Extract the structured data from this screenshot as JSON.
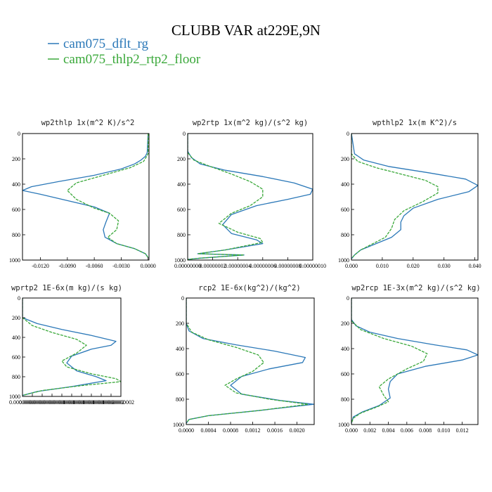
{
  "title": "CLUBB VAR at229E,9N",
  "colors": {
    "blue": "#2b78b8",
    "green": "#3aa83a"
  },
  "legend": [
    {
      "label": "cam075_dflt_rg",
      "color": "#2b78b8",
      "dash": "solid"
    },
    {
      "label": "cam075_thlp2_rtp2_floor",
      "color": "#3aa83a",
      "dash": "solid"
    }
  ],
  "chart_data": [
    {
      "type": "line",
      "title": "wp2thlp  1x(m^2 K)/s^2",
      "xlim": [
        -0.014,
        0.0001
      ],
      "ylim": [
        1000,
        0
      ],
      "xticks": [
        -0.012,
        -0.009,
        -0.006,
        -0.003,
        0.0
      ],
      "xtick_labels": [
        "-0.0120",
        "-0.0090",
        "-0.0060",
        "-0.0030",
        "0.0000"
      ],
      "yticks": [
        0,
        200,
        400,
        600,
        800,
        1000
      ],
      "series": [
        {
          "color": "blue",
          "dash": "solid",
          "points": [
            [
              0,
              0
            ],
            [
              -0.0001,
              150
            ],
            [
              -0.0003,
              180
            ],
            [
              -0.0008,
              210
            ],
            [
              -0.0015,
              240
            ],
            [
              -0.003,
              280
            ],
            [
              -0.006,
              330
            ],
            [
              -0.01,
              380
            ],
            [
              -0.013,
              420
            ],
            [
              -0.014,
              450
            ],
            [
              -0.012,
              480
            ],
            [
              -0.009,
              530
            ],
            [
              -0.006,
              580
            ],
            [
              -0.0043,
              630
            ],
            [
              -0.0047,
              700
            ],
            [
              -0.005,
              760
            ],
            [
              -0.0048,
              820
            ],
            [
              -0.0035,
              870
            ],
            [
              -0.0015,
              910
            ],
            [
              -0.0003,
              950
            ],
            [
              0,
              980
            ]
          ]
        },
        {
          "color": "green",
          "dash": "dash",
          "points": [
            [
              0,
              0
            ],
            [
              0,
              160
            ],
            [
              -0.0005,
              220
            ],
            [
              -0.002,
              270
            ],
            [
              -0.005,
              330
            ],
            [
              -0.008,
              390
            ],
            [
              -0.009,
              450
            ],
            [
              -0.008,
              520
            ],
            [
              -0.006,
              590
            ],
            [
              -0.0043,
              630
            ],
            [
              -0.0033,
              690
            ],
            [
              -0.0035,
              760
            ],
            [
              -0.0045,
              820
            ],
            [
              -0.0035,
              870
            ],
            [
              -0.0015,
              910
            ],
            [
              -0.0003,
              950
            ],
            [
              0,
              980
            ]
          ]
        }
      ]
    },
    {
      "type": "line",
      "title": "wp2rtp  1x(m^2 kg)/(s^2 kg)",
      "xlim": [
        0,
        1e-07
      ],
      "ylim": [
        1000,
        0
      ],
      "xticks": [
        0,
        2e-08,
        4e-08,
        6e-08,
        8e-08,
        1e-07
      ],
      "xtick_labels": [
        "0.00000000",
        "0.00000002",
        "0.00000004",
        "0.00000006",
        "0.00000008",
        "0.00000010"
      ],
      "yticks": [
        0,
        200,
        400,
        600,
        800,
        1000
      ],
      "series": [
        {
          "color": "blue",
          "dash": "solid",
          "points": [
            [
              0,
              0
            ],
            [
              0,
              140
            ],
            [
              3e-09,
              190
            ],
            [
              1e-08,
              240
            ],
            [
              3e-08,
              290
            ],
            [
              6e-08,
              340
            ],
            [
              8.5e-08,
              390
            ],
            [
              1e-07,
              440
            ],
            [
              9.8e-08,
              480
            ],
            [
              8e-08,
              520
            ],
            [
              5.5e-08,
              570
            ],
            [
              3.5e-08,
              640
            ],
            [
              2.8e-08,
              720
            ],
            [
              3.5e-08,
              790
            ],
            [
              5.5e-08,
              840
            ],
            [
              6e-08,
              870
            ],
            [
              3e-08,
              920
            ],
            [
              8e-09,
              950
            ],
            [
              4.5e-08,
              960
            ],
            [
              1e-08,
              985
            ],
            [
              0,
              995
            ]
          ]
        },
        {
          "color": "green",
          "dash": "dash",
          "points": [
            [
              0,
              0
            ],
            [
              0,
              150
            ],
            [
              5e-09,
              210
            ],
            [
              1.8e-08,
              260
            ],
            [
              3.5e-08,
              320
            ],
            [
              5e-08,
              380
            ],
            [
              6e-08,
              440
            ],
            [
              6e-08,
              500
            ],
            [
              5e-08,
              570
            ],
            [
              3.5e-08,
              630
            ],
            [
              2.5e-08,
              710
            ],
            [
              4e-08,
              780
            ],
            [
              5.8e-08,
              830
            ],
            [
              6e-08,
              860
            ],
            [
              3e-08,
              920
            ],
            [
              8e-09,
              950
            ],
            [
              4.5e-08,
              960
            ],
            [
              1e-08,
              985
            ],
            [
              0,
              995
            ]
          ]
        }
      ]
    },
    {
      "type": "line",
      "title": "wpthlp2  1x(m K^2)/s",
      "xlim": [
        0,
        0.041
      ],
      "ylim": [
        1000,
        0
      ],
      "xticks": [
        0,
        0.01,
        0.02,
        0.03,
        0.04
      ],
      "xtick_labels": [
        "0.000",
        "0.010",
        "0.020",
        "0.030",
        "0.040"
      ],
      "yticks": [
        0,
        200,
        400,
        600,
        800,
        1000
      ],
      "series": [
        {
          "color": "blue",
          "dash": "solid",
          "points": [
            [
              0,
              0
            ],
            [
              0.001,
              160
            ],
            [
              0.004,
              210
            ],
            [
              0.012,
              260
            ],
            [
              0.025,
              310
            ],
            [
              0.037,
              360
            ],
            [
              0.041,
              410
            ],
            [
              0.038,
              460
            ],
            [
              0.028,
              520
            ],
            [
              0.02,
              590
            ],
            [
              0.017,
              650
            ],
            [
              0.016,
              700
            ],
            [
              0.016,
              760
            ],
            [
              0.013,
              820
            ],
            [
              0.008,
              870
            ],
            [
              0.003,
              920
            ],
            [
              0.001,
              960
            ],
            [
              0,
              990
            ]
          ]
        },
        {
          "color": "green",
          "dash": "dash",
          "points": [
            [
              0,
              0
            ],
            [
              0,
              160
            ],
            [
              0.002,
              220
            ],
            [
              0.008,
              270
            ],
            [
              0.016,
              320
            ],
            [
              0.024,
              370
            ],
            [
              0.028,
              420
            ],
            [
              0.028,
              470
            ],
            [
              0.023,
              540
            ],
            [
              0.017,
              610
            ],
            [
              0.014,
              680
            ],
            [
              0.013,
              750
            ],
            [
              0.011,
              820
            ],
            [
              0.007,
              870
            ],
            [
              0.003,
              920
            ],
            [
              0.001,
              960
            ],
            [
              0,
              990
            ]
          ]
        }
      ]
    },
    {
      "type": "line",
      "title": "wprtp2  1E-6x(m kg)/(s kg)",
      "xlim": [
        0,
        2e-08
      ],
      "ylim": [
        1000,
        0
      ],
      "xticks": [
        0,
        2e-09,
        4e-09,
        6e-09,
        8e-09,
        1e-08,
        1.2e-08,
        1.4e-08,
        1.6e-08,
        1.8e-08,
        2e-08
      ],
      "xtick_labels": [
        "0.00000000",
        "0.00000000",
        "0.00000000",
        "0.00000001",
        "0.00000001",
        "0.00000001",
        "0.00000001",
        "0.00000001",
        "0.00000002",
        "0.00000002",
        "0.00000002"
      ],
      "yticks": [
        0,
        200,
        400,
        600,
        800,
        1000
      ],
      "series": [
        {
          "color": "blue",
          "dash": "solid",
          "points": [
            [
              0,
              0
            ],
            [
              0,
              200
            ],
            [
              3e-09,
              260
            ],
            [
              8e-09,
              320
            ],
            [
              1.4e-08,
              380
            ],
            [
              1.9e-08,
              440
            ],
            [
              1.8e-08,
              480
            ],
            [
              1.4e-08,
              520
            ],
            [
              1e-08,
              590
            ],
            [
              9e-09,
              660
            ],
            [
              1.1e-08,
              740
            ],
            [
              1.5e-08,
              800
            ],
            [
              1.7e-08,
              840
            ],
            [
              1e-08,
              900
            ],
            [
              3e-09,
              950
            ],
            [
              0,
              990
            ]
          ]
        },
        {
          "color": "green",
          "dash": "dash",
          "points": [
            [
              0,
              0
            ],
            [
              0,
              200
            ],
            [
              2e-09,
              280
            ],
            [
              6e-09,
              350
            ],
            [
              1.1e-08,
              420
            ],
            [
              1.3e-08,
              480
            ],
            [
              1.1e-08,
              560
            ],
            [
              8e-09,
              640
            ],
            [
              9e-09,
              700
            ],
            [
              1.4e-08,
              770
            ],
            [
              1.9e-08,
              820
            ],
            [
              2e-08,
              850
            ],
            [
              1.2e-08,
              890
            ],
            [
              4e-09,
              940
            ],
            [
              0,
              990
            ]
          ]
        }
      ]
    },
    {
      "type": "line",
      "title": "rcp2  1E-6x(kg^2)/(kg^2)",
      "xlim": [
        0,
        0.00231
      ],
      "ylim": [
        1000,
        0
      ],
      "xticks": [
        0,
        0.0004,
        0.0008,
        0.0012,
        0.0016,
        0.002
      ],
      "xtick_labels": [
        "0.0000",
        "0.0004",
        "0.0008",
        "0.0012",
        "0.0016",
        "0.0020"
      ],
      "yticks": [
        0,
        200,
        400,
        600,
        800,
        1000
      ],
      "series": [
        {
          "color": "blue",
          "dash": "solid",
          "points": [
            [
              0,
              0
            ],
            [
              0,
              200
            ],
            [
              5e-05,
              260
            ],
            [
              0.0003,
              320
            ],
            [
              0.0009,
              370
            ],
            [
              0.0016,
              420
            ],
            [
              0.00215,
              470
            ],
            [
              0.0021,
              510
            ],
            [
              0.0015,
              560
            ],
            [
              0.001,
              620
            ],
            [
              0.0008,
              690
            ],
            [
              0.001,
              760
            ],
            [
              0.0017,
              810
            ],
            [
              0.0023,
              840
            ],
            [
              0.0013,
              890
            ],
            [
              0.0004,
              930
            ],
            [
              5e-05,
              960
            ],
            [
              0,
              990
            ]
          ]
        },
        {
          "color": "green",
          "dash": "dash",
          "points": [
            [
              0,
              0
            ],
            [
              0,
              200
            ],
            [
              0.0001,
              270
            ],
            [
              0.0004,
              330
            ],
            [
              0.0009,
              390
            ],
            [
              0.0013,
              450
            ],
            [
              0.0014,
              510
            ],
            [
              0.0012,
              580
            ],
            [
              0.0009,
              640
            ],
            [
              0.0007,
              690
            ],
            [
              0.0009,
              750
            ],
            [
              0.0015,
              800
            ],
            [
              0.0022,
              840
            ],
            [
              0.0013,
              890
            ],
            [
              0.0004,
              930
            ],
            [
              5e-05,
              960
            ],
            [
              0,
              990
            ]
          ]
        }
      ]
    },
    {
      "type": "line",
      "title": "wp2rcp  1E-3x(m^2 kg)/(s^2 kg)",
      "xlim": [
        0,
        0.0137
      ],
      "ylim": [
        1000,
        0
      ],
      "xticks": [
        0,
        0.002,
        0.004,
        0.006,
        0.008,
        0.01,
        0.012
      ],
      "xtick_labels": [
        "0.000",
        "0.002",
        "0.004",
        "0.006",
        "0.008",
        "0.010",
        "0.012"
      ],
      "yticks": [
        0,
        200,
        400,
        600,
        800,
        1000
      ],
      "series": [
        {
          "color": "blue",
          "dash": "solid",
          "points": [
            [
              0,
              0
            ],
            [
              0,
              170
            ],
            [
              0.0005,
              220
            ],
            [
              0.002,
              270
            ],
            [
              0.005,
              320
            ],
            [
              0.009,
              370
            ],
            [
              0.0125,
              410
            ],
            [
              0.0137,
              450
            ],
            [
              0.012,
              490
            ],
            [
              0.008,
              540
            ],
            [
              0.005,
              600
            ],
            [
              0.0042,
              660
            ],
            [
              0.004,
              720
            ],
            [
              0.0042,
              790
            ],
            [
              0.003,
              850
            ],
            [
              0.0012,
              900
            ],
            [
              0.0002,
              940
            ],
            [
              0,
              990
            ]
          ]
        },
        {
          "color": "green",
          "dash": "dash",
          "points": [
            [
              0,
              0
            ],
            [
              0,
              180
            ],
            [
              0.001,
              250
            ],
            [
              0.0035,
              320
            ],
            [
              0.0065,
              380
            ],
            [
              0.0082,
              440
            ],
            [
              0.0078,
              500
            ],
            [
              0.006,
              560
            ],
            [
              0.004,
              640
            ],
            [
              0.003,
              700
            ],
            [
              0.0035,
              770
            ],
            [
              0.004,
              820
            ],
            [
              0.0028,
              860
            ],
            [
              0.001,
              910
            ],
            [
              0.0002,
              950
            ],
            [
              0,
              990
            ]
          ]
        }
      ]
    }
  ]
}
